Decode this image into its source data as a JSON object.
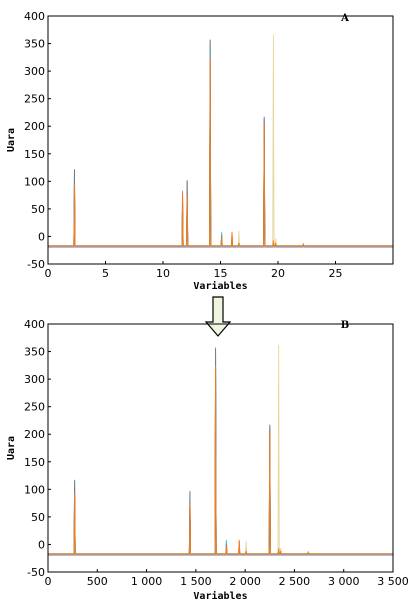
{
  "chart_data": [
    {
      "type": "line",
      "panel_label": "A",
      "xlabel": "Variables",
      "ylabel": "Uara",
      "xlim": [
        0,
        30
      ],
      "ylim": [
        -50,
        400
      ],
      "xticks": [
        0,
        5,
        10,
        15,
        20,
        25
      ],
      "xtick_labels": [
        "0",
        "5",
        "10",
        "15",
        "20",
        "25"
      ],
      "yticks": [
        -50,
        0,
        50,
        100,
        150,
        200,
        250,
        300,
        350,
        400
      ],
      "ytick_labels": [
        "-50",
        "0",
        "50",
        "100",
        "150",
        "200",
        "250",
        "300",
        "350",
        "400"
      ],
      "baseline": -18,
      "colors": [
        "#1f4e9b",
        "#d62728",
        "#2ca02c",
        "#17becf",
        "#9467bd",
        "#e0d08a",
        "#7f7f7f",
        "#ff7f0e"
      ],
      "peaks": [
        {
          "x": 2.3,
          "heights": [
            140,
            110,
            90,
            70,
            120,
            20
          ]
        },
        {
          "x": 11.7,
          "heights": [
            80,
            100,
            60,
            70,
            40,
            10
          ]
        },
        {
          "x": 12.1,
          "heights": [
            120,
            90,
            60,
            80,
            100,
            20
          ]
        },
        {
          "x": 14.1,
          "heights": [
            375,
            340,
            300,
            360,
            320,
            30
          ]
        },
        {
          "x": 15.1,
          "heights": [
            20,
            15,
            10,
            25,
            15,
            5
          ]
        },
        {
          "x": 16.0,
          "heights": [
            10,
            25,
            8,
            5,
            15,
            5
          ]
        },
        {
          "x": 16.6,
          "heights": [
            5,
            5,
            5,
            5,
            5,
            28
          ]
        },
        {
          "x": 18.8,
          "heights": [
            235,
            220,
            200,
            190,
            230,
            15
          ]
        },
        {
          "x": 19.6,
          "heights": [
            5,
            10,
            8,
            5,
            5,
            385
          ]
        },
        {
          "x": 19.8,
          "heights": [
            5,
            5,
            5,
            5,
            5,
            15
          ]
        },
        {
          "x": 22.2,
          "heights": [
            3,
            3,
            3,
            3,
            3,
            5
          ]
        }
      ]
    },
    {
      "type": "line",
      "panel_label": "B",
      "xlabel": "Variables",
      "ylabel": "Uara",
      "xlim": [
        0,
        3500
      ],
      "ylim": [
        -50,
        400
      ],
      "xticks": [
        0,
        500,
        1000,
        1500,
        2000,
        2500,
        3000,
        3500
      ],
      "xtick_labels": [
        "0",
        "500",
        "1 000",
        "1 500",
        "2 000",
        "2 500",
        "3 000",
        "3 500"
      ],
      "yticks": [
        -50,
        0,
        50,
        100,
        150,
        200,
        250,
        300,
        350,
        400
      ],
      "ytick_labels": [
        "-50",
        "0",
        "50",
        "100",
        "150",
        "200",
        "250",
        "300",
        "350",
        "400"
      ],
      "baseline": -18,
      "colors": [
        "#1f4e9b",
        "#d62728",
        "#2ca02c",
        "#17becf",
        "#9467bd",
        "#e0d08a",
        "#7f7f7f",
        "#ff7f0e"
      ],
      "peaks": [
        {
          "x": 270,
          "heights": [
            135,
            110,
            90,
            70,
            120,
            20
          ]
        },
        {
          "x": 1440,
          "heights": [
            115,
            90,
            60,
            80,
            100,
            20
          ]
        },
        {
          "x": 1700,
          "heights": [
            375,
            340,
            300,
            360,
            320,
            30
          ]
        },
        {
          "x": 1810,
          "heights": [
            20,
            15,
            10,
            25,
            15,
            5
          ]
        },
        {
          "x": 1940,
          "heights": [
            10,
            25,
            8,
            5,
            15,
            5
          ]
        },
        {
          "x": 2010,
          "heights": [
            5,
            5,
            5,
            5,
            5,
            25
          ]
        },
        {
          "x": 2250,
          "heights": [
            235,
            220,
            200,
            190,
            230,
            15
          ]
        },
        {
          "x": 2340,
          "heights": [
            5,
            10,
            8,
            5,
            5,
            380
          ]
        },
        {
          "x": 2360,
          "heights": [
            5,
            5,
            5,
            5,
            5,
            12
          ]
        },
        {
          "x": 2640,
          "heights": [
            3,
            3,
            3,
            3,
            3,
            5
          ]
        }
      ]
    }
  ]
}
